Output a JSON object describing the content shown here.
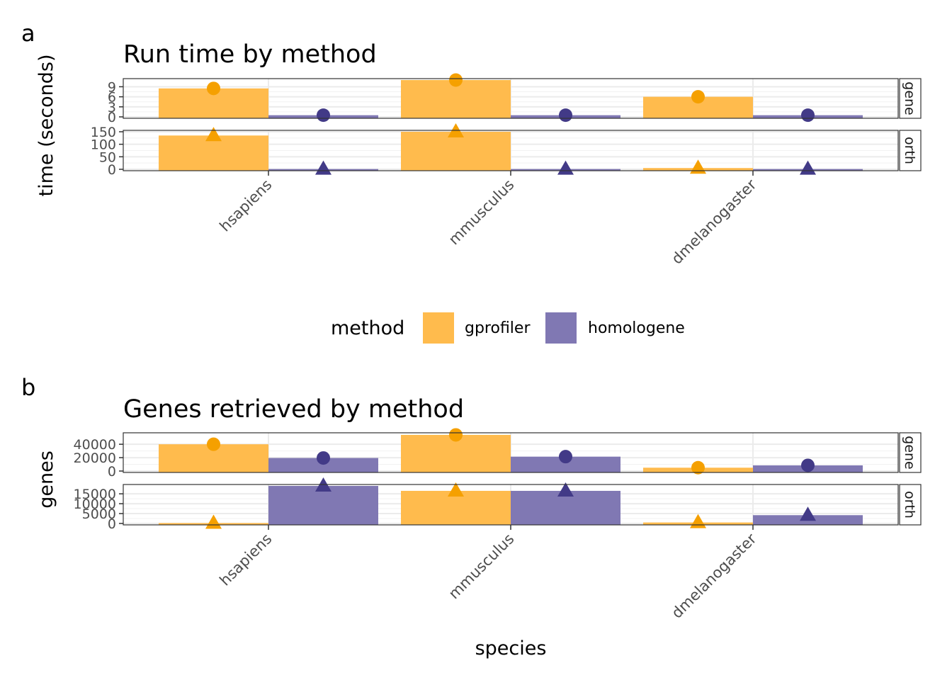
{
  "chart_data": [
    {
      "tag": "a",
      "type": "bar",
      "title": "Run time by method",
      "xlabel": "",
      "ylabel": "time (seconds)",
      "categories": [
        "hsapiens",
        "mmusculus",
        "dmelanogaster"
      ],
      "legend": {
        "title": "method",
        "position": "bottom"
      },
      "facets": [
        {
          "strip": "gene",
          "marker": "circle",
          "ylim": [
            0,
            11
          ],
          "yticks": [
            0,
            3,
            6,
            9
          ],
          "series": [
            {
              "name": "gprofiler",
              "values": [
                8.5,
                11,
                6
              ]
            },
            {
              "name": "homologene",
              "values": [
                0.5,
                0.5,
                0.5
              ]
            }
          ]
        },
        {
          "strip": "orth",
          "marker": "triangle",
          "ylim": [
            0,
            150
          ],
          "yticks": [
            0,
            50,
            100,
            150
          ],
          "series": [
            {
              "name": "gprofiler",
              "values": [
                135,
                150,
                5
              ]
            },
            {
              "name": "homologene",
              "values": [
                1,
                1,
                1
              ]
            }
          ]
        }
      ]
    },
    {
      "tag": "b",
      "type": "bar",
      "title": "Genes retrieved by method",
      "xlabel": "species",
      "ylabel": "genes",
      "categories": [
        "hsapiens",
        "mmusculus",
        "dmelanogaster"
      ],
      "facets": [
        {
          "strip": "gene",
          "marker": "circle",
          "ylim": [
            0,
            55000
          ],
          "yticks": [
            0,
            20000,
            40000
          ],
          "series": [
            {
              "name": "gprofiler",
              "values": [
                40000,
                54000,
                5000
              ]
            },
            {
              "name": "homologene",
              "values": [
                19500,
                21500,
                8500
              ]
            }
          ]
        },
        {
          "strip": "orth",
          "marker": "triangle",
          "ylim": [
            0,
            19000
          ],
          "yticks": [
            0,
            5000,
            10000,
            15000
          ],
          "series": [
            {
              "name": "gprofiler",
              "values": [
                200,
                16500,
                500
              ]
            },
            {
              "name": "homologene",
              "values": [
                19000,
                16500,
                4200
              ]
            }
          ]
        }
      ]
    }
  ],
  "legend_items": [
    {
      "label": "gprofiler",
      "color": "#ffbb4d"
    },
    {
      "label": "homologene",
      "color": "#8078b3"
    }
  ],
  "colors": {
    "gprofiler_bar": "#ffbb4d",
    "gprofiler_point": "#f5a000",
    "homologene_bar": "#8078b3",
    "homologene_point": "#423a87"
  }
}
